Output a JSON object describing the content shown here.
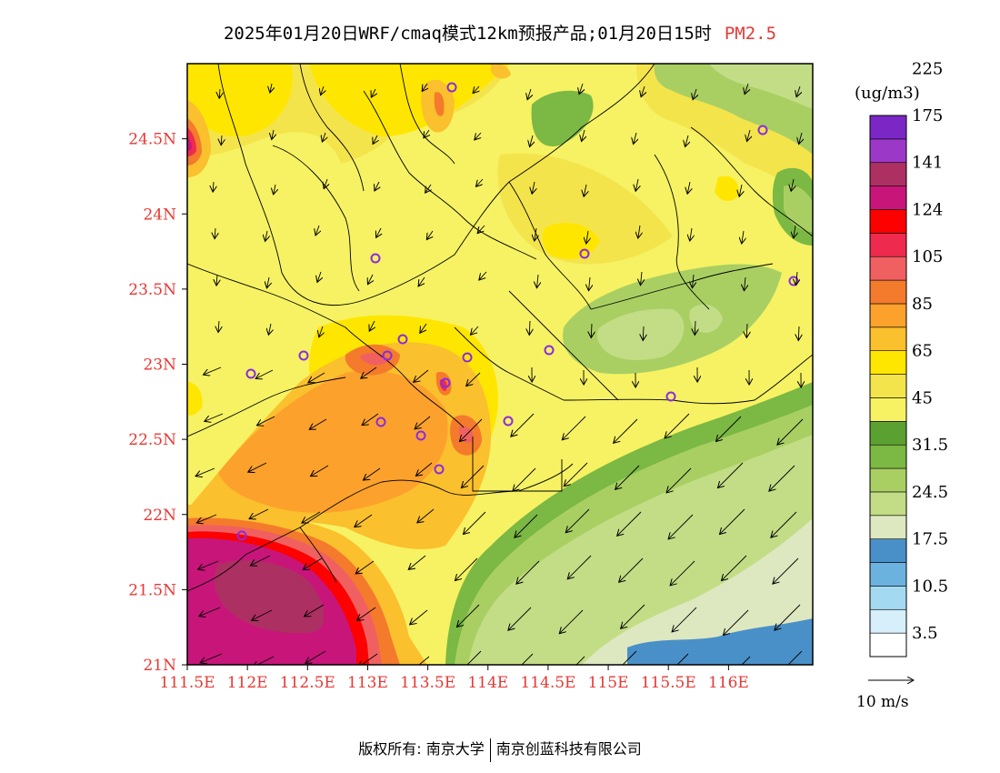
{
  "title": {
    "text": "2025年01月20日WRF/cmaq模式12km预报产品;01月20日15时",
    "pollutant": "PM2.5"
  },
  "axes": {
    "x_ticks": [
      "111.5E",
      "112E",
      "112.5E",
      "113E",
      "113.5E",
      "114E",
      "114.5E",
      "115E",
      "115.5E",
      "116E"
    ],
    "y_ticks": [
      "21N",
      "21.5N",
      "22N",
      "22.5N",
      "23N",
      "23.5N",
      "24N",
      "24.5N"
    ],
    "lon_range": [
      111.5,
      116.7
    ],
    "lat_range": [
      21,
      25
    ]
  },
  "colorbar": {
    "unit": "(ug/m3)",
    "colors": [
      "#ffffff",
      "#d6effa",
      "#a3daf2",
      "#6cb2de",
      "#4a90c8",
      "#dde8c0",
      "#c3dd86",
      "#a9cf63",
      "#7bb844",
      "#5ba131",
      "#f6f263",
      "#f4e44c",
      "#ffe600",
      "#fbc02d",
      "#fca12b",
      "#f47a2c",
      "#f06060",
      "#ee2a4e",
      "#ff0000",
      "#c8157a",
      "#ad3062",
      "#9c38c7",
      "#7b27c6"
    ],
    "labels": [
      "3.5",
      "10.5",
      "17.5",
      "24.5",
      "31.5",
      "45",
      "65",
      "85",
      "105",
      "124",
      "141",
      "175",
      "225"
    ]
  },
  "wind_scale": {
    "label": "10 m/s"
  },
  "footer": {
    "left": "版权所有: 南京大学",
    "right": "南京创蓝科技有限公司"
  }
}
